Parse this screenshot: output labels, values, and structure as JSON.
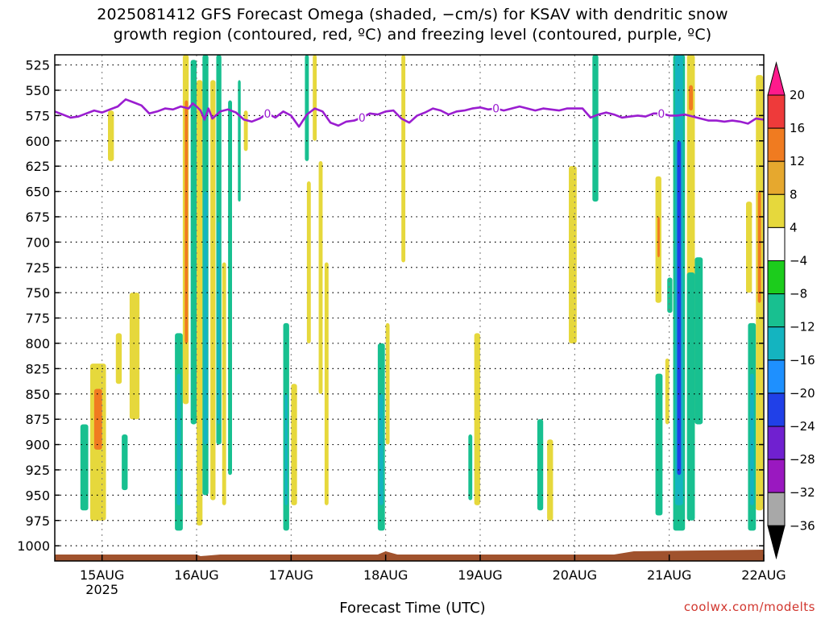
{
  "title_line1": "2025081412 GFS Forecast Omega (shaded, −cm/s) for KSAV with dendritic snow",
  "title_line2": "growth region (contoured, red, ºC) and freezing level (contoured, purple, ºC)",
  "credit": "coolwx.com/modelts",
  "chart_data": {
    "type": "heatmap",
    "title": "2025081412 GFS Forecast Omega (shaded, −cm/s) for KSAV with dendritic snow growth region (contoured, red, ºC) and freezing level (contoured, purple, ºC)",
    "xlabel": "Forecast Time (UTC)",
    "ylabel": "",
    "x_ticks": [
      {
        "label": "15AUG",
        "sub": "2025",
        "t": 0
      },
      {
        "label": "16AUG",
        "sub": "",
        "t": 24
      },
      {
        "label": "17AUG",
        "sub": "",
        "t": 48
      },
      {
        "label": "18AUG",
        "sub": "",
        "t": 72
      },
      {
        "label": "19AUG",
        "sub": "",
        "t": 96
      },
      {
        "label": "20AUG",
        "sub": "",
        "t": 120
      },
      {
        "label": "21AUG",
        "sub": "",
        "t": 144
      },
      {
        "label": "22AUG",
        "sub": "",
        "t": 168
      }
    ],
    "xlim_hours": [
      -12,
      168
    ],
    "y_ticks": [
      525,
      550,
      575,
      600,
      625,
      650,
      675,
      700,
      725,
      750,
      775,
      800,
      825,
      850,
      875,
      900,
      925,
      950,
      975,
      1000
    ],
    "ylim_hpa": [
      1015,
      515
    ],
    "grid": true,
    "colorbar": {
      "labels": [
        "20",
        "16",
        "12",
        "8",
        "4",
        "−4",
        "−8",
        "−12",
        "−16",
        "−20",
        "−24",
        "−28",
        "−32",
        "−36"
      ],
      "colors": [
        "#ff1a8c",
        "#ee3a3a",
        "#f07b20",
        "#e6a82e",
        "#e6d83c",
        "#ffffff",
        "#1ccc1c",
        "#18c090",
        "#14b4c0",
        "#1e90ff",
        "#2040e8",
        "#7020d0",
        "#9a18c0",
        "#a8a8a8",
        "#000000"
      ]
    },
    "freezing_level": {
      "label": "0",
      "color": "#9a1dd0",
      "points": [
        [
          -12,
          571
        ],
        [
          -10,
          574
        ],
        [
          -8,
          577
        ],
        [
          -6,
          576
        ],
        [
          -4,
          573
        ],
        [
          -2,
          570
        ],
        [
          0,
          572
        ],
        [
          2,
          569
        ],
        [
          4,
          566
        ],
        [
          6,
          559
        ],
        [
          8,
          562
        ],
        [
          10,
          565
        ],
        [
          12,
          573
        ],
        [
          14,
          571
        ],
        [
          16,
          568
        ],
        [
          18,
          569
        ],
        [
          20,
          566
        ],
        [
          22,
          568
        ],
        [
          23,
          563
        ],
        [
          24,
          566
        ],
        [
          25,
          570
        ],
        [
          26,
          579
        ],
        [
          27,
          568
        ],
        [
          28,
          578
        ],
        [
          30,
          571
        ],
        [
          32,
          569
        ],
        [
          34,
          572
        ],
        [
          36,
          579
        ],
        [
          38,
          581
        ],
        [
          40,
          578
        ],
        [
          42,
          573
        ],
        [
          44,
          577
        ],
        [
          46,
          571
        ],
        [
          48,
          575
        ],
        [
          50,
          586
        ],
        [
          52,
          574
        ],
        [
          54,
          568
        ],
        [
          56,
          571
        ],
        [
          58,
          582
        ],
        [
          60,
          585
        ],
        [
          62,
          581
        ],
        [
          64,
          580
        ],
        [
          66,
          577
        ],
        [
          68,
          573
        ],
        [
          70,
          574
        ],
        [
          72,
          571
        ],
        [
          74,
          570
        ],
        [
          76,
          578
        ],
        [
          78,
          582
        ],
        [
          80,
          575
        ],
        [
          82,
          572
        ],
        [
          84,
          568
        ],
        [
          86,
          570
        ],
        [
          88,
          574
        ],
        [
          90,
          571
        ],
        [
          92,
          570
        ],
        [
          94,
          568
        ],
        [
          96,
          567
        ],
        [
          98,
          569
        ],
        [
          100,
          568
        ],
        [
          102,
          570
        ],
        [
          104,
          568
        ],
        [
          106,
          566
        ],
        [
          108,
          568
        ],
        [
          110,
          570
        ],
        [
          112,
          568
        ],
        [
          114,
          569
        ],
        [
          116,
          570
        ],
        [
          118,
          568
        ],
        [
          120,
          568
        ],
        [
          122,
          568
        ],
        [
          124,
          577
        ],
        [
          126,
          574
        ],
        [
          128,
          572
        ],
        [
          130,
          574
        ],
        [
          132,
          577
        ],
        [
          134,
          576
        ],
        [
          136,
          575
        ],
        [
          138,
          576
        ],
        [
          140,
          573
        ],
        [
          142,
          573
        ],
        [
          144,
          575
        ],
        [
          146,
          575
        ],
        [
          148,
          574
        ],
        [
          150,
          576
        ],
        [
          152,
          578
        ],
        [
          154,
          580
        ],
        [
          156,
          580
        ],
        [
          158,
          581
        ],
        [
          160,
          580
        ],
        [
          162,
          581
        ],
        [
          164,
          583
        ],
        [
          166,
          578
        ],
        [
          168,
          579
        ]
      ]
    },
    "surface_color": "#a0522d",
    "omega_cells": [
      {
        "t0": -5.5,
        "t1": -3.5,
        "p0": 880,
        "p1": 965,
        "v": -8
      },
      {
        "t0": -3,
        "t1": 1,
        "p0": 820,
        "p1": 975,
        "v": 6
      },
      {
        "t0": -2,
        "t1": 0,
        "p0": 845,
        "p1": 905,
        "v": 12
      },
      {
        "t0": 1.5,
        "t1": 3,
        "p0": 570,
        "p1": 620,
        "v": 6
      },
      {
        "t0": 3.5,
        "t1": 5,
        "p0": 790,
        "p1": 840,
        "v": 6
      },
      {
        "t0": 5,
        "t1": 6.5,
        "p0": 890,
        "p1": 945,
        "v": -8
      },
      {
        "t0": 7,
        "t1": 9.5,
        "p0": 750,
        "p1": 875,
        "v": 6
      },
      {
        "t0": 18.5,
        "t1": 20.5,
        "p0": 790,
        "p1": 985,
        "v": -8
      },
      {
        "t0": 19,
        "t1": 20,
        "p0": 830,
        "p1": 960,
        "v": -14
      },
      {
        "t0": 20.5,
        "t1": 22,
        "p0": 515,
        "p1": 860,
        "v": 6
      },
      {
        "t0": 21,
        "t1": 21.8,
        "p0": 560,
        "p1": 800,
        "v": 12
      },
      {
        "t0": 22.5,
        "t1": 24,
        "p0": 520,
        "p1": 880,
        "v": -8
      },
      {
        "t0": 24,
        "t1": 25.5,
        "p0": 540,
        "p1": 980,
        "v": 6
      },
      {
        "t0": 25.5,
        "t1": 27,
        "p0": 515,
        "p1": 950,
        "v": -8
      },
      {
        "t0": 25.8,
        "t1": 26.8,
        "p0": 650,
        "p1": 900,
        "v": -14
      },
      {
        "t0": 27.5,
        "t1": 28.8,
        "p0": 540,
        "p1": 955,
        "v": 6
      },
      {
        "t0": 29,
        "t1": 30.3,
        "p0": 515,
        "p1": 900,
        "v": -8
      },
      {
        "t0": 29.3,
        "t1": 30,
        "p0": 680,
        "p1": 880,
        "v": -14
      },
      {
        "t0": 30.5,
        "t1": 31.5,
        "p0": 720,
        "p1": 960,
        "v": 6
      },
      {
        "t0": 32,
        "t1": 33,
        "p0": 560,
        "p1": 930,
        "v": -8
      },
      {
        "t0": 34.5,
        "t1": 35.2,
        "p0": 540,
        "p1": 660,
        "v": -8
      },
      {
        "t0": 36,
        "t1": 37,
        "p0": 570,
        "p1": 610,
        "v": 6
      },
      {
        "t0": 46,
        "t1": 47.5,
        "p0": 780,
        "p1": 985,
        "v": -8
      },
      {
        "t0": 46.4,
        "t1": 47.1,
        "p0": 850,
        "p1": 960,
        "v": -14
      },
      {
        "t0": 48,
        "t1": 49.5,
        "p0": 840,
        "p1": 960,
        "v": 6
      },
      {
        "t0": 51.5,
        "t1": 52.5,
        "p0": 515,
        "p1": 620,
        "v": -8
      },
      {
        "t0": 52,
        "t1": 53,
        "p0": 640,
        "p1": 800,
        "v": 6
      },
      {
        "t0": 53.5,
        "t1": 54.5,
        "p0": 515,
        "p1": 600,
        "v": 6
      },
      {
        "t0": 55,
        "t1": 56,
        "p0": 620,
        "p1": 850,
        "v": 6
      },
      {
        "t0": 56.5,
        "t1": 57.5,
        "p0": 720,
        "p1": 960,
        "v": 6
      },
      {
        "t0": 70,
        "t1": 71.8,
        "p0": 800,
        "p1": 985,
        "v": -8
      },
      {
        "t0": 70.4,
        "t1": 71.4,
        "p0": 850,
        "p1": 960,
        "v": -14
      },
      {
        "t0": 72,
        "t1": 73,
        "p0": 780,
        "p1": 900,
        "v": 6
      },
      {
        "t0": 76,
        "t1": 77,
        "p0": 515,
        "p1": 720,
        "v": 6
      },
      {
        "t0": 93,
        "t1": 94,
        "p0": 890,
        "p1": 955,
        "v": -8
      },
      {
        "t0": 94.5,
        "t1": 96,
        "p0": 790,
        "p1": 960,
        "v": 6
      },
      {
        "t0": 110.5,
        "t1": 112,
        "p0": 875,
        "p1": 965,
        "v": -8
      },
      {
        "t0": 113,
        "t1": 114.5,
        "p0": 895,
        "p1": 975,
        "v": 6
      },
      {
        "t0": 118.5,
        "t1": 120.5,
        "p0": 625,
        "p1": 800,
        "v": 6
      },
      {
        "t0": 124.5,
        "t1": 126,
        "p0": 515,
        "p1": 660,
        "v": -8
      },
      {
        "t0": 140.5,
        "t1": 142,
        "p0": 635,
        "p1": 760,
        "v": 6
      },
      {
        "t0": 141,
        "t1": 141.6,
        "p0": 675,
        "p1": 715,
        "v": 12
      },
      {
        "t0": 140.5,
        "t1": 142.3,
        "p0": 830,
        "p1": 970,
        "v": -8
      },
      {
        "t0": 143.5,
        "t1": 144.8,
        "p0": 735,
        "p1": 770,
        "v": -8
      },
      {
        "t0": 143,
        "t1": 144,
        "p0": 815,
        "p1": 880,
        "v": 6
      },
      {
        "t0": 145,
        "t1": 148,
        "p0": 515,
        "p1": 985,
        "v": -8
      },
      {
        "t0": 145.5,
        "t1": 147.5,
        "p0": 515,
        "p1": 960,
        "v": -14
      },
      {
        "t0": 146,
        "t1": 147,
        "p0": 600,
        "p1": 930,
        "v": -20
      },
      {
        "t0": 148.5,
        "t1": 150.5,
        "p0": 515,
        "p1": 900,
        "v": 6
      },
      {
        "t0": 149,
        "t1": 150,
        "p0": 545,
        "p1": 570,
        "v": 12
      },
      {
        "t0": 148.5,
        "t1": 150.5,
        "p0": 730,
        "p1": 975,
        "v": -8
      },
      {
        "t0": 150.5,
        "t1": 152.5,
        "p0": 715,
        "p1": 880,
        "v": -8
      },
      {
        "t0": 163.5,
        "t1": 165,
        "p0": 660,
        "p1": 750,
        "v": 6
      },
      {
        "t0": 164,
        "t1": 166,
        "p0": 780,
        "p1": 985,
        "v": -8
      },
      {
        "t0": 164.5,
        "t1": 165.5,
        "p0": 830,
        "p1": 960,
        "v": -14
      },
      {
        "t0": 166,
        "t1": 167.8,
        "p0": 535,
        "p1": 965,
        "v": 6
      },
      {
        "t0": 166.5,
        "t1": 167.3,
        "p0": 650,
        "p1": 760,
        "v": 12
      }
    ]
  }
}
